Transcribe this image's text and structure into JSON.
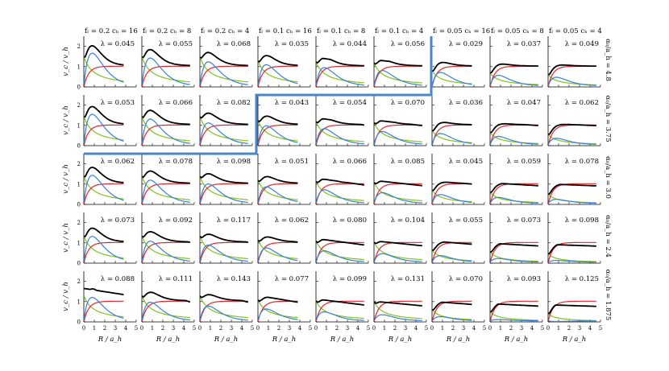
{
  "figure": {
    "column_headers": [
      {
        "fL": "0.2",
        "ch": "16"
      },
      {
        "fL": "0.2",
        "ch": "8"
      },
      {
        "fL": "0.2",
        "ch": "4"
      },
      {
        "fL": "0.1",
        "ch": "16"
      },
      {
        "fL": "0.1",
        "ch": "8"
      },
      {
        "fL": "0.1",
        "ch": "4"
      },
      {
        "fL": "0.05",
        "ch": "16"
      },
      {
        "fL": "0.05",
        "ch": "8"
      },
      {
        "fL": "0.05",
        "ch": "4"
      }
    ],
    "row_labels": [
      "4.8",
      "3.75",
      "3.0",
      "2.4",
      "1.875"
    ],
    "row_label_prefix": "α₀/a_h =",
    "ylabel": "v_c / v_h",
    "xlabel": "R / a_h",
    "xticks": [
      "0",
      "1",
      "2",
      "3",
      "4",
      "5"
    ],
    "yticks": [
      "0",
      "1",
      "2"
    ],
    "lambda_values": [
      [
        "λ = 0.045",
        "λ = 0.055",
        "λ = 0.068",
        "λ = 0.035",
        "λ = 0.044",
        "λ = 0.056",
        "λ = 0.029",
        "λ = 0.037",
        "λ = 0.049"
      ],
      [
        "λ = 0.053",
        "λ = 0.066",
        "λ = 0.082",
        "λ = 0.043",
        "λ = 0.054",
        "λ = 0.070",
        "λ = 0.036",
        "λ = 0.047",
        "λ = 0.062"
      ],
      [
        "λ = 0.062",
        "λ = 0.078",
        "λ = 0.098",
        "λ = 0.051",
        "λ = 0.066",
        "λ = 0.085",
        "λ = 0.045",
        "λ = 0.059",
        "λ = 0.078"
      ],
      [
        "λ = 0.073",
        "λ = 0.092",
        "λ = 0.117",
        "λ = 0.062",
        "λ = 0.080",
        "λ = 0.104",
        "λ = 0.055",
        "λ = 0.073",
        "λ = 0.098"
      ],
      [
        "λ = 0.088",
        "λ = 0.111",
        "λ = 0.143",
        "λ = 0.077",
        "λ = 0.099",
        "λ = 0.131",
        "λ = 0.070",
        "λ = 0.093",
        "λ = 0.125"
      ]
    ],
    "colors": {
      "total": "#000000",
      "disk": "#3a7fd5",
      "halo": "#e0262e",
      "bulge": "#7fc31c",
      "boundary": "#4a86c8"
    }
  },
  "chart_data": {
    "type": "line",
    "layout": "grid 5 rows x 9 columns of rotation-curve panels",
    "xlim": [
      0,
      5
    ],
    "ylim": [
      0,
      2.5
    ],
    "series_colors": {
      "total": "black",
      "disk": "blue",
      "halo": "red",
      "bulge": "green"
    },
    "x": [
      0.05,
      0.5,
      1,
      1.5,
      2,
      2.5,
      3,
      3.5,
      4,
      4.5
    ],
    "panels": [
      {
        "row": 0,
        "col": 0,
        "lambda": 0.045,
        "total": [
          1.8,
          2.3,
          2.15,
          1.95,
          1.8,
          1.7,
          1.6,
          1.5,
          1.45,
          null
        ],
        "disk": [
          0.6,
          1.7,
          1.5,
          1.25,
          1.05,
          0.9,
          0.8,
          0.72,
          0.66,
          null
        ],
        "halo": [
          0.3,
          0.85,
          1.0,
          1.02,
          1.02,
          1.0,
          0.99,
          0.98,
          0.97,
          null
        ],
        "bulge": [
          1.5,
          1.1,
          0.8,
          0.65,
          0.55,
          0.5,
          0.45,
          0.42,
          0.4,
          null
        ]
      },
      {
        "row": 0,
        "col": 1,
        "lambda": 0.055,
        "total": [
          1.7,
          2.1,
          1.9,
          1.75,
          1.6,
          1.5,
          1.45,
          1.4,
          1.35,
          null
        ],
        "disk": [
          0.55,
          1.55,
          1.35,
          1.1,
          0.95,
          0.82,
          0.73,
          0.66,
          0.6,
          null
        ],
        "halo": [
          0.3,
          0.85,
          1.0,
          1.02,
          1.02,
          1.0,
          0.99,
          0.98,
          0.97,
          null
        ],
        "bulge": [
          1.5,
          1.1,
          0.8,
          0.65,
          0.55,
          0.5,
          0.45,
          0.42,
          0.4,
          null
        ]
      },
      {
        "row": 0,
        "col": 2,
        "lambda": 0.068,
        "total": [
          1.6,
          1.85,
          1.75,
          1.6,
          1.5,
          1.4,
          1.35,
          1.3,
          1.25,
          null
        ],
        "disk": [
          0.5,
          1.35,
          1.2,
          1.0,
          0.85,
          0.75,
          0.66,
          0.6,
          0.55,
          null
        ],
        "halo": [
          0.3,
          0.85,
          1.0,
          1.02,
          1.02,
          1.0,
          0.99,
          0.98,
          0.97,
          null
        ],
        "bulge": [
          1.5,
          1.1,
          0.8,
          0.65,
          0.55,
          0.5,
          0.45,
          0.42,
          0.4,
          null
        ]
      },
      {
        "row": 1,
        "col": 0,
        "lambda": 0.053,
        "total": [
          1.7,
          2.15,
          2.0,
          1.85,
          1.7,
          1.6,
          1.5,
          1.45,
          1.4,
          null
        ],
        "disk": [
          0.55,
          1.6,
          1.45,
          1.2,
          1.0,
          0.88,
          0.78,
          0.7,
          0.64,
          null
        ]
      },
      {
        "row": 2,
        "col": 0,
        "lambda": 0.062,
        "total": [
          1.6,
          1.95,
          1.85,
          1.7,
          1.6,
          1.5,
          1.42,
          1.35,
          1.3,
          null
        ],
        "disk": [
          0.5,
          1.45,
          1.35,
          1.15,
          0.95,
          0.85,
          0.75,
          0.68,
          0.62,
          null
        ]
      },
      {
        "row": 3,
        "col": 0,
        "lambda": 0.073,
        "total": [
          1.5,
          1.85,
          1.75,
          1.6,
          1.5,
          1.42,
          1.35,
          1.3,
          1.25,
          null
        ],
        "disk": [
          0.45,
          1.2,
          1.2,
          1.05,
          0.92,
          0.82,
          0.72,
          0.66,
          0.6,
          null
        ]
      },
      {
        "row": 4,
        "col": 0,
        "lambda": 0.088,
        "total": [
          1.7,
          1.6,
          1.7,
          1.6,
          1.5,
          1.42,
          1.35,
          1.3,
          1.25,
          null
        ],
        "disk": [
          0.35,
          0.9,
          1.1,
          1.0,
          0.9,
          0.8,
          0.72,
          0.66,
          0.6,
          null
        ]
      },
      {
        "row": 4,
        "col": 8,
        "lambda": 0.125,
        "total": [
          0.4,
          1.0,
          1.05,
          1.08,
          1.08,
          1.07,
          1.06,
          1.05,
          1.05,
          1.04
        ],
        "disk": [
          0.1,
          0.3,
          0.32,
          0.3,
          0.27,
          0.24,
          0.21,
          0.19,
          0.17,
          0.16
        ],
        "halo": [
          0.3,
          0.85,
          1.0,
          1.02,
          1.02,
          1.0,
          0.99,
          0.98,
          0.97,
          0.97
        ],
        "bulge": [
          0.25,
          0.25,
          0.2,
          0.17,
          0.15,
          0.13,
          0.12,
          0.11,
          0.1,
          0.1
        ]
      }
    ]
  }
}
